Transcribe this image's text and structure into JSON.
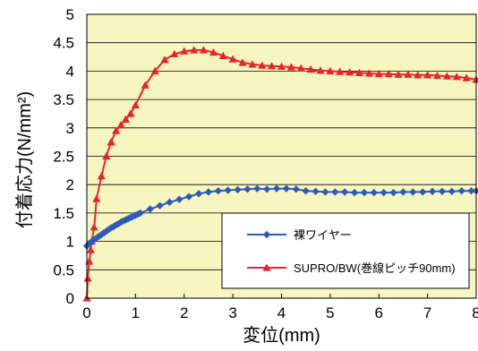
{
  "chart_data": {
    "type": "line",
    "title": "",
    "xlabel": "変位(mm)",
    "ylabel": "付着応力(N/mm²)",
    "xlim": [
      0,
      8
    ],
    "ylim": [
      0,
      5
    ],
    "x_ticks": [
      "0",
      "1",
      "2",
      "3",
      "4",
      "5",
      "6",
      "7",
      "8"
    ],
    "y_ticks": [
      "0",
      "0.5",
      "1",
      "1.5",
      "2",
      "2.5",
      "3",
      "3.5",
      "4",
      "4.5",
      "5"
    ],
    "grid": "horizontal",
    "plot_background": "#F8F6C0",
    "legend_position": "bottom-right",
    "series": [
      {
        "name": "裸ワイヤー",
        "color": "#2E5BB8",
        "marker": "diamond",
        "points": [
          [
            0,
            0.92
          ],
          [
            0.05,
            0.96
          ],
          [
            0.1,
            1.0
          ],
          [
            0.15,
            1.03
          ],
          [
            0.2,
            1.06
          ],
          [
            0.25,
            1.09
          ],
          [
            0.3,
            1.12
          ],
          [
            0.35,
            1.15
          ],
          [
            0.4,
            1.18
          ],
          [
            0.45,
            1.21
          ],
          [
            0.5,
            1.24
          ],
          [
            0.55,
            1.26
          ],
          [
            0.6,
            1.29
          ],
          [
            0.65,
            1.31
          ],
          [
            0.7,
            1.34
          ],
          [
            0.75,
            1.36
          ],
          [
            0.8,
            1.38
          ],
          [
            0.85,
            1.4
          ],
          [
            0.9,
            1.42
          ],
          [
            0.95,
            1.44
          ],
          [
            1.0,
            1.46
          ],
          [
            1.05,
            1.48
          ],
          [
            1.1,
            1.5
          ],
          [
            1.3,
            1.57
          ],
          [
            1.5,
            1.63
          ],
          [
            1.7,
            1.69
          ],
          [
            1.9,
            1.74
          ],
          [
            2.1,
            1.79
          ],
          [
            2.3,
            1.84
          ],
          [
            2.5,
            1.87
          ],
          [
            2.7,
            1.89
          ],
          [
            2.9,
            1.9
          ],
          [
            3.1,
            1.91
          ],
          [
            3.3,
            1.92
          ],
          [
            3.5,
            1.93
          ],
          [
            3.7,
            1.92
          ],
          [
            3.9,
            1.93
          ],
          [
            4.1,
            1.93
          ],
          [
            4.3,
            1.92
          ],
          [
            4.5,
            1.89
          ],
          [
            4.7,
            1.88
          ],
          [
            4.9,
            1.87
          ],
          [
            5.1,
            1.87
          ],
          [
            5.3,
            1.87
          ],
          [
            5.5,
            1.86
          ],
          [
            5.7,
            1.86
          ],
          [
            5.9,
            1.86
          ],
          [
            6.1,
            1.86
          ],
          [
            6.3,
            1.86
          ],
          [
            6.5,
            1.87
          ],
          [
            6.7,
            1.87
          ],
          [
            6.9,
            1.87
          ],
          [
            7.1,
            1.88
          ],
          [
            7.3,
            1.88
          ],
          [
            7.5,
            1.88
          ],
          [
            7.7,
            1.89
          ],
          [
            7.9,
            1.89
          ],
          [
            8.0,
            1.89
          ]
        ]
      },
      {
        "name": "SUPRO/BW(巻線ピッチ90mm)",
        "color": "#E8242A",
        "marker": "triangle",
        "points": [
          [
            0,
            0
          ],
          [
            0.02,
            0.35
          ],
          [
            0.05,
            0.65
          ],
          [
            0.08,
            0.85
          ],
          [
            0.1,
            1.0
          ],
          [
            0.15,
            1.25
          ],
          [
            0.2,
            1.75
          ],
          [
            0.3,
            2.15
          ],
          [
            0.4,
            2.5
          ],
          [
            0.5,
            2.75
          ],
          [
            0.6,
            2.95
          ],
          [
            0.7,
            3.05
          ],
          [
            0.8,
            3.15
          ],
          [
            0.9,
            3.25
          ],
          [
            1.0,
            3.4
          ],
          [
            1.2,
            3.75
          ],
          [
            1.4,
            4.0
          ],
          [
            1.6,
            4.2
          ],
          [
            1.8,
            4.3
          ],
          [
            2.0,
            4.35
          ],
          [
            2.2,
            4.37
          ],
          [
            2.4,
            4.37
          ],
          [
            2.6,
            4.33
          ],
          [
            2.8,
            4.27
          ],
          [
            3.0,
            4.21
          ],
          [
            3.2,
            4.15
          ],
          [
            3.4,
            4.12
          ],
          [
            3.6,
            4.1
          ],
          [
            3.8,
            4.09
          ],
          [
            4.0,
            4.08
          ],
          [
            4.2,
            4.07
          ],
          [
            4.4,
            4.05
          ],
          [
            4.6,
            4.03
          ],
          [
            4.8,
            4.01
          ],
          [
            5.0,
            4.0
          ],
          [
            5.2,
            3.99
          ],
          [
            5.4,
            3.98
          ],
          [
            5.6,
            3.97
          ],
          [
            5.8,
            3.96
          ],
          [
            6.0,
            3.95
          ],
          [
            6.2,
            3.95
          ],
          [
            6.4,
            3.94
          ],
          [
            6.6,
            3.94
          ],
          [
            6.8,
            3.93
          ],
          [
            7.0,
            3.93
          ],
          [
            7.2,
            3.92
          ],
          [
            7.4,
            3.91
          ],
          [
            7.6,
            3.9
          ],
          [
            7.8,
            3.88
          ],
          [
            8.0,
            3.85
          ]
        ]
      }
    ]
  }
}
